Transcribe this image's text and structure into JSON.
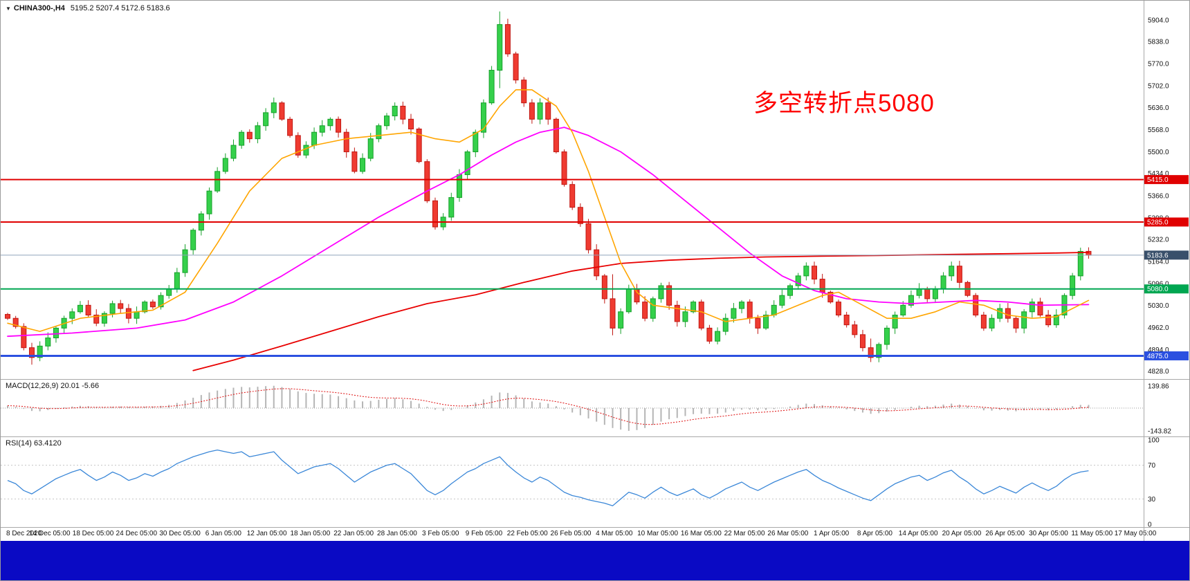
{
  "header": {
    "dropdown": "▼",
    "symbol": "CHINA300-,H4",
    "ohlc": "5195.2 5207.4 5172.6 5183.6"
  },
  "annotation": {
    "text": "多空转折点5080"
  },
  "macd_header": {
    "label": "MACD(12,26,9)",
    "main": "20.01",
    "signal": "-5.66"
  },
  "rsi_header": {
    "label": "RSI(14)",
    "value": "63.4120"
  },
  "colors": {
    "candle_up": "#16a02a",
    "candle_up_fill": "#35d04b",
    "candle_down": "#c01712",
    "candle_down_fill": "#ef3b31",
    "ma_orange": "#ffa500",
    "ma_magenta": "#ff00ff",
    "ma_red": "#e80000",
    "rsi": "#3a87d8",
    "macd_hist": "#b5b5b5",
    "macd_signal": "#e02020",
    "annotation": "#fe0000",
    "bottom_bar": "#0a0ac4"
  },
  "hlines": [
    {
      "name": "resistance-line-1",
      "value": 5415.0,
      "line_color": "#e00000",
      "badge_bg": "#e00000",
      "width": 2
    },
    {
      "name": "resistance-line-2",
      "value": 5285.0,
      "line_color": "#e00000",
      "badge_bg": "#e00000",
      "width": 2
    },
    {
      "name": "current-price-line",
      "value": 5183.6,
      "line_color": "#8fa3bb",
      "badge_bg": "#39506b",
      "width": 1
    },
    {
      "name": "pivot-line-5080",
      "value": 5080.0,
      "line_color": "#00a651",
      "badge_bg": "#00a651",
      "width": 2
    },
    {
      "name": "support-line-4875",
      "value": 4875.0,
      "line_color": "#2b50e0",
      "badge_bg": "#2b50e0",
      "width": 3
    }
  ],
  "chart_data": {
    "type": "candlestick",
    "symbol": "CHINA300-,H4",
    "timeframe": "H4",
    "price_range": [
      4804,
      5963
    ],
    "y_ticks": [
      5904,
      5838,
      5770,
      5702,
      5636,
      5568,
      5500,
      5434,
      5366,
      5298,
      5232,
      5164,
      5096,
      5030,
      4962,
      4894,
      4828
    ],
    "x_labels": [
      "8 Dec 2020",
      "14 Dec 05:00",
      "18 Dec 05:00",
      "24 Dec 05:00",
      "30 Dec 05:00",
      "6 Jan 05:00",
      "12 Jan 05:00",
      "18 Jan 05:00",
      "22 Jan 05:00",
      "28 Jan 05:00",
      "3 Feb 05:00",
      "9 Feb 05:00",
      "22 Feb 05:00",
      "26 Feb 05:00",
      "4 Mar 05:00",
      "10 Mar 05:00",
      "16 Mar 05:00",
      "22 Mar 05:00",
      "26 Mar 05:00",
      "1 Apr 05:00",
      "8 Apr 05:00",
      "14 Apr 05:00",
      "20 Apr 05:00",
      "26 Apr 05:00",
      "30 Apr 05:00",
      "11 May 05:00",
      "17 May 05:00"
    ],
    "closes": [
      4990,
      4965,
      4900,
      4870,
      4905,
      4930,
      4960,
      4990,
      5010,
      5030,
      5000,
      4975,
      5005,
      5035,
      5020,
      4990,
      5010,
      5040,
      5025,
      5060,
      5080,
      5130,
      5200,
      5260,
      5310,
      5380,
      5440,
      5480,
      5520,
      5560,
      5540,
      5580,
      5620,
      5650,
      5600,
      5550,
      5490,
      5520,
      5560,
      5580,
      5600,
      5560,
      5500,
      5440,
      5480,
      5540,
      5580,
      5610,
      5640,
      5600,
      5570,
      5470,
      5350,
      5270,
      5300,
      5360,
      5430,
      5500,
      5560,
      5650,
      5750,
      5890,
      5800,
      5720,
      5650,
      5600,
      5650,
      5600,
      5500,
      5400,
      5330,
      5280,
      5200,
      5120,
      5050,
      4960,
      5010,
      5080,
      5040,
      4990,
      5050,
      5090,
      5030,
      4980,
      5010,
      5040,
      4960,
      4920,
      4950,
      4990,
      5020,
      5040,
      4990,
      4960,
      5000,
      5030,
      5060,
      5090,
      5120,
      5150,
      5110,
      5070,
      5040,
      5000,
      4970,
      4940,
      4900,
      4870,
      4910,
      4960,
      5000,
      5030,
      5060,
      5080,
      5050,
      5080,
      5120,
      5150,
      5100,
      5060,
      5000,
      4960,
      4990,
      5020,
      4990,
      4960,
      5010,
      5040,
      5000,
      4970,
      5000,
      5060,
      5120,
      5195,
      5183.6
    ],
    "last_candle_ohlc": [
      5195.2,
      5207.4,
      5172.6,
      5183.6
    ],
    "wick_overrides": {
      "3": [
        4915,
        4848
      ],
      "61": [
        5930,
        5695
      ],
      "75": [
        5125,
        4938
      ],
      "107": [
        4928,
        4856
      ]
    },
    "ma_orange": [
      [
        0,
        4975
      ],
      [
        4,
        4950
      ],
      [
        9,
        4990
      ],
      [
        14,
        5005
      ],
      [
        18,
        5015
      ],
      [
        22,
        5070
      ],
      [
        26,
        5220
      ],
      [
        30,
        5380
      ],
      [
        34,
        5480
      ],
      [
        38,
        5520
      ],
      [
        42,
        5540
      ],
      [
        46,
        5550
      ],
      [
        50,
        5560
      ],
      [
        53,
        5540
      ],
      [
        56,
        5530
      ],
      [
        59,
        5570
      ],
      [
        61,
        5640
      ],
      [
        63,
        5690
      ],
      [
        65,
        5690
      ],
      [
        68,
        5640
      ],
      [
        70,
        5560
      ],
      [
        72,
        5440
      ],
      [
        74,
        5300
      ],
      [
        76,
        5160
      ],
      [
        78,
        5070
      ],
      [
        80,
        5030
      ],
      [
        83,
        5020
      ],
      [
        86,
        5010
      ],
      [
        89,
        4980
      ],
      [
        92,
        4990
      ],
      [
        95,
        5000
      ],
      [
        98,
        5030
      ],
      [
        101,
        5060
      ],
      [
        103,
        5070
      ],
      [
        106,
        5030
      ],
      [
        109,
        4990
      ],
      [
        112,
        4990
      ],
      [
        115,
        5010
      ],
      [
        118,
        5040
      ],
      [
        121,
        5030
      ],
      [
        124,
        5000
      ],
      [
        127,
        4990
      ],
      [
        130,
        4995
      ],
      [
        134,
        5045
      ]
    ],
    "ma_magenta": [
      [
        0,
        4935
      ],
      [
        8,
        4945
      ],
      [
        16,
        4960
      ],
      [
        22,
        4985
      ],
      [
        28,
        5040
      ],
      [
        34,
        5120
      ],
      [
        40,
        5210
      ],
      [
        46,
        5300
      ],
      [
        52,
        5380
      ],
      [
        56,
        5430
      ],
      [
        60,
        5490
      ],
      [
        63,
        5530
      ],
      [
        66,
        5560
      ],
      [
        69,
        5575
      ],
      [
        72,
        5550
      ],
      [
        76,
        5500
      ],
      [
        80,
        5430
      ],
      [
        84,
        5350
      ],
      [
        88,
        5270
      ],
      [
        92,
        5190
      ],
      [
        96,
        5120
      ],
      [
        100,
        5075
      ],
      [
        104,
        5050
      ],
      [
        108,
        5040
      ],
      [
        112,
        5035
      ],
      [
        116,
        5040
      ],
      [
        120,
        5045
      ],
      [
        124,
        5040
      ],
      [
        128,
        5030
      ],
      [
        134,
        5032
      ]
    ],
    "ma_red": [
      [
        23,
        4830
      ],
      [
        28,
        4862
      ],
      [
        34,
        4905
      ],
      [
        40,
        4950
      ],
      [
        46,
        4995
      ],
      [
        52,
        5035
      ],
      [
        58,
        5062
      ],
      [
        64,
        5100
      ],
      [
        70,
        5135
      ],
      [
        76,
        5158
      ],
      [
        82,
        5168
      ],
      [
        88,
        5174
      ],
      [
        94,
        5178
      ],
      [
        100,
        5180
      ],
      [
        106,
        5182
      ],
      [
        112,
        5184
      ],
      [
        118,
        5186
      ],
      [
        124,
        5188
      ],
      [
        130,
        5190
      ],
      [
        134,
        5192
      ]
    ],
    "macd": {
      "label": "MACD(12,26,9)",
      "main_value": 20.01,
      "signal_value": -5.66,
      "range": [
        -165,
        165
      ],
      "axis_labels": [
        139.86,
        -143.82
      ],
      "values": [
        15,
        8,
        -5,
        -18,
        -20,
        -12,
        -4,
        4,
        10,
        14,
        12,
        6,
        4,
        8,
        10,
        6,
        4,
        8,
        10,
        14,
        20,
        32,
        48,
        65,
        82,
        98,
        110,
        120,
        128,
        133,
        130,
        134,
        138,
        140,
        132,
        120,
        105,
        95,
        90,
        88,
        85,
        75,
        62,
        48,
        42,
        45,
        52,
        58,
        62,
        55,
        45,
        28,
        8,
        -10,
        -18,
        -12,
        2,
        18,
        35,
        55,
        78,
        98,
        95,
        80,
        60,
        42,
        35,
        28,
        12,
        -8,
        -28,
        -45,
        -65,
        -85,
        -105,
        -125,
        -135,
        -143,
        -138,
        -125,
        -105,
        -85,
        -70,
        -62,
        -50,
        -38,
        -35,
        -38,
        -35,
        -28,
        -18,
        -10,
        -10,
        -14,
        -12,
        -6,
        2,
        10,
        20,
        28,
        25,
        18,
        10,
        2,
        -8,
        -18,
        -28,
        -36,
        -32,
        -22,
        -12,
        -2,
        8,
        15,
        12,
        15,
        22,
        28,
        22,
        12,
        -2,
        -14,
        -16,
        -12,
        -16,
        -20,
        -14,
        -6,
        -10,
        -14,
        -8,
        2,
        12,
        20,
        20.01
      ]
    },
    "rsi": {
      "label": "RSI(14)",
      "current_value": 63.412,
      "range": [
        0,
        100
      ],
      "levels": [
        70,
        30
      ],
      "axis_labels": [
        100,
        70,
        30,
        0
      ],
      "values": [
        52,
        48,
        40,
        36,
        42,
        48,
        54,
        58,
        62,
        65,
        58,
        52,
        56,
        62,
        58,
        52,
        55,
        60,
        57,
        62,
        66,
        72,
        76,
        80,
        83,
        86,
        88,
        86,
        84,
        86,
        80,
        82,
        84,
        86,
        76,
        68,
        60,
        64,
        68,
        70,
        72,
        66,
        58,
        50,
        56,
        62,
        66,
        70,
        72,
        66,
        60,
        50,
        40,
        35,
        40,
        48,
        55,
        62,
        66,
        72,
        76,
        80,
        70,
        62,
        55,
        50,
        56,
        52,
        45,
        38,
        34,
        32,
        29,
        27,
        25,
        22,
        30,
        38,
        35,
        31,
        38,
        44,
        38,
        34,
        38,
        42,
        35,
        31,
        36,
        42,
        46,
        50,
        44,
        40,
        45,
        50,
        54,
        58,
        62,
        65,
        58,
        52,
        48,
        43,
        39,
        35,
        31,
        28,
        35,
        42,
        48,
        52,
        56,
        58,
        52,
        56,
        61,
        64,
        56,
        50,
        42,
        36,
        40,
        45,
        41,
        37,
        44,
        49,
        44,
        40,
        45,
        53,
        59,
        62,
        63.41
      ]
    }
  }
}
